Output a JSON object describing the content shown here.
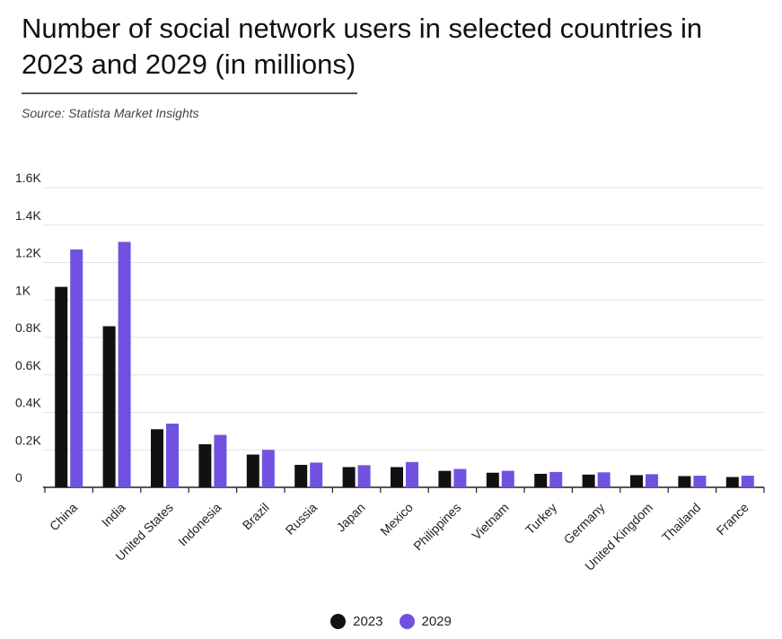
{
  "header": {
    "title": "Number of social network users in selected countries in 2023 and 2029 (in millions)",
    "source": "Source: Statista Market Insights"
  },
  "colors": {
    "series_2023": "#111111",
    "series_2029": "#7152e0",
    "grid": "#e3e3e3",
    "axis": "#222222"
  },
  "chart_data": {
    "type": "bar",
    "title": "Number of social network users in selected countries in 2023 and 2029 (in millions)",
    "xlabel": "",
    "ylabel": "",
    "ylim": [
      0,
      1600
    ],
    "y_ticks": [
      {
        "value": 0,
        "label": "0"
      },
      {
        "value": 200,
        "label": "0.2K"
      },
      {
        "value": 400,
        "label": "0.4K"
      },
      {
        "value": 600,
        "label": "0.6K"
      },
      {
        "value": 800,
        "label": "0.8K"
      },
      {
        "value": 1000,
        "label": "1K"
      },
      {
        "value": 1200,
        "label": "1.2K"
      },
      {
        "value": 1400,
        "label": "1.4K"
      },
      {
        "value": 1600,
        "label": "1.6K"
      }
    ],
    "grid": true,
    "legend_position": "bottom-center",
    "categories": [
      "China",
      "India",
      "United States",
      "Indonesia",
      "Brazil",
      "Russia",
      "Japan",
      "Mexico",
      "Philippines",
      "Vietnam",
      "Turkey",
      "Germany",
      "United Kingdom",
      "Thailand",
      "France"
    ],
    "series": [
      {
        "name": "2023",
        "color": "#111111",
        "values": [
          1070,
          860,
          310,
          230,
          175,
          120,
          108,
          108,
          88,
          78,
          72,
          68,
          65,
          60,
          55
        ]
      },
      {
        "name": "2029",
        "color": "#7152e0",
        "values": [
          1270,
          1310,
          340,
          280,
          200,
          132,
          118,
          135,
          98,
          88,
          82,
          80,
          70,
          62,
          62
        ]
      }
    ]
  }
}
